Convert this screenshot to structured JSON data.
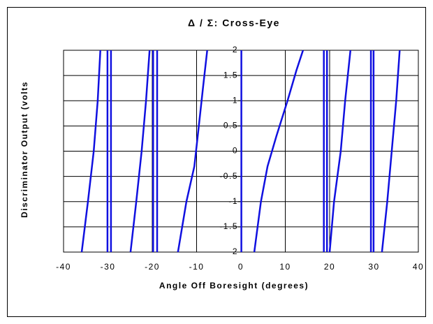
{
  "chart_data": {
    "type": "line",
    "title": "Δ / Σ: Cross-Eye",
    "xlabel": "Angle Off Boresight (degrees)",
    "ylabel": "Discriminator Output (volts",
    "color": "#1010e0",
    "x": [
      -35.9,
      -34.5,
      -33.2,
      -32.3,
      -31.7,
      null,
      -30.1,
      -30.1,
      null,
      -29.3,
      -29.3,
      null,
      -24.9,
      -23.6,
      -22.4,
      -21.4,
      -20.6,
      null,
      -19.8,
      -19.8,
      null,
      -18.9,
      -18.9,
      null,
      -14.2,
      -12.3,
      -10.5,
      -9.5,
      -8.5,
      -7.6,
      null,
      0.1,
      0.1,
      null,
      3,
      4.5,
      6,
      8,
      10.5,
      12.5,
      14,
      null,
      18.7,
      18.7,
      null,
      19.4,
      19.4,
      null,
      20,
      21,
      22.5,
      23.5,
      24.7,
      null,
      29.3,
      29.3,
      null,
      29.9,
      29.9,
      null,
      31.8,
      33,
      34,
      35,
      35.8
    ],
    "values": [
      -2,
      -1,
      0,
      1,
      2,
      null,
      -2,
      2,
      null,
      -2,
      2,
      null,
      -2,
      -1,
      0,
      1,
      2,
      null,
      -2,
      2,
      null,
      -2,
      2,
      null,
      -2,
      -1,
      -0.3,
      0.5,
      1.3,
      2,
      null,
      -2,
      2,
      null,
      -2,
      -1,
      -0.3,
      0.3,
      1,
      1.6,
      2,
      null,
      -2,
      2,
      null,
      -2,
      2,
      null,
      -2,
      -1,
      0,
      1,
      2,
      null,
      -2,
      2,
      null,
      -2,
      2,
      null,
      -2,
      -1,
      0,
      1,
      2
    ],
    "xlim": [
      -40,
      40
    ],
    "xticks": [
      -40,
      -30,
      -20,
      -10,
      0,
      10,
      20,
      30,
      40
    ],
    "ylim": [
      -2,
      2
    ],
    "yticks": [
      -2,
      -1.5,
      -1,
      -0.5,
      0,
      0.5,
      1,
      1.5,
      2
    ],
    "grid": true
  }
}
